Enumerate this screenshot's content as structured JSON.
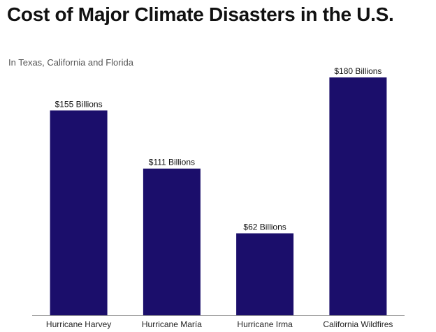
{
  "chart_data": {
    "type": "bar",
    "title": "Cost of Major Climate Disasters in the U.S.",
    "subtitle": "In Texas, California and Florida",
    "categories": [
      "Hurricane Harvey",
      "Hurricane María",
      "Hurricane Irma",
      "California Wildfires"
    ],
    "values": [
      155,
      111,
      62,
      180
    ],
    "data_labels": [
      "$155 Billions",
      "$111 Billions",
      "$62 Billions",
      "$180 Billions"
    ],
    "xlabel": "",
    "ylabel": "",
    "ylim": [
      0,
      180
    ],
    "grid": false,
    "legend": "none",
    "bar_color": "#1b0e6b",
    "baseline_color": "#999999"
  }
}
